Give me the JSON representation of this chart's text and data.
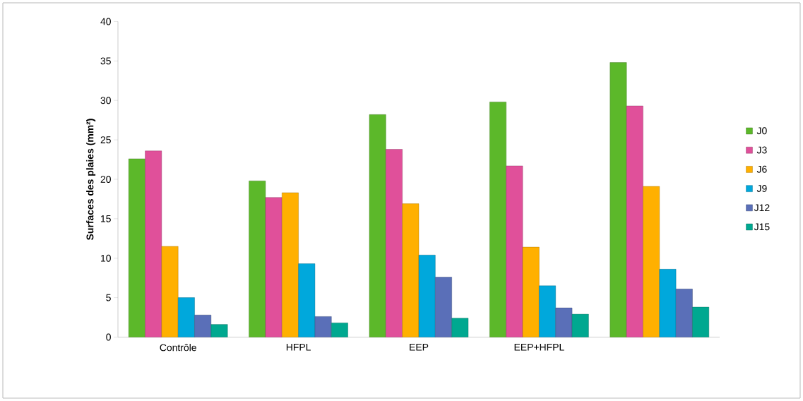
{
  "chart_data": {
    "type": "bar",
    "ylabel": "Surfaces des plaies (mm²)",
    "categories": [
      "Contrôle",
      "HFPL",
      "EEP",
      "EEP+HFPL",
      null
    ],
    "series": [
      {
        "name": "J0",
        "color": "#5cb82a",
        "values": [
          22.6,
          19.8,
          28.2,
          29.8,
          34.8
        ]
      },
      {
        "name": "J3",
        "color": "#e0509a",
        "values": [
          23.6,
          17.7,
          23.8,
          21.7,
          29.3
        ]
      },
      {
        "name": "J6",
        "color": "#ffb000",
        "values": [
          11.5,
          18.3,
          16.9,
          11.4,
          19.1
        ]
      },
      {
        "name": "J9",
        "color": "#00a8dc",
        "values": [
          5.0,
          9.3,
          10.4,
          6.5,
          8.6
        ]
      },
      {
        "name": "J12",
        "color": "#5a6fb8",
        "values": [
          2.8,
          2.6,
          7.6,
          3.7,
          6.1
        ]
      },
      {
        "name": "J15",
        "color": "#00a890",
        "values": [
          1.6,
          1.8,
          2.4,
          2.9,
          3.8
        ]
      }
    ],
    "ylim": [
      0,
      40
    ],
    "yticks": [
      0,
      5,
      10,
      15,
      20,
      25,
      30,
      35,
      40
    ],
    "grid": false,
    "legend": "right"
  }
}
